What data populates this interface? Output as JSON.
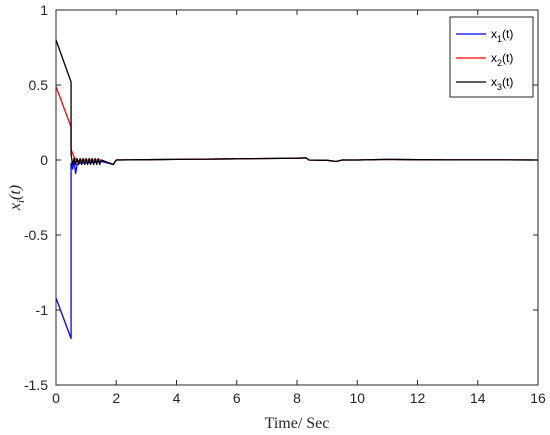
{
  "chart_data": {
    "type": "line",
    "xlabel": "Time/ Sec",
    "ylabel": "x_i(t)",
    "ylabel_base": "x",
    "ylabel_sub": "i",
    "ylabel_rest": "(t)",
    "xlim": [
      0,
      16
    ],
    "ylim": [
      -1.5,
      1
    ],
    "xticks": [
      0,
      2,
      4,
      6,
      8,
      10,
      12,
      14,
      16
    ],
    "yticks": [
      -1.5,
      -1,
      -0.5,
      0,
      0.5,
      1
    ],
    "ytick_labels": [
      "-1.5",
      "-1",
      "-0.5",
      "0",
      "0.5",
      "1"
    ],
    "grid": false,
    "legend_position": "top-right",
    "series": [
      {
        "name": "x_1(t)",
        "legend_base": "x",
        "legend_sub": "1",
        "legend_rest": "(t)",
        "color": "#0000ff",
        "x": [
          0,
          0.5,
          0.5,
          0.55,
          0.6,
          0.65,
          0.7,
          0.8,
          1.0,
          1.5,
          1.9,
          2.0,
          3.0,
          4.0,
          5.0,
          6.0,
          7.0,
          8.0,
          8.3,
          8.4,
          9.0,
          9.3,
          9.5,
          10.0,
          10.5,
          11.0,
          11.5,
          12.0,
          13.0,
          14.0,
          15.0,
          16.0
        ],
        "y": [
          -0.92,
          -1.19,
          -0.02,
          -0.06,
          -0.01,
          -0.09,
          -0.03,
          -0.02,
          -0.02,
          -0.01,
          -0.03,
          0.0,
          0.002,
          0.004,
          0.006,
          0.008,
          0.01,
          0.012,
          0.014,
          0.0,
          -0.002,
          -0.01,
          0.0,
          0.0,
          0.002,
          0.004,
          0.003,
          0.002,
          0.001,
          0.001,
          0.001,
          0.0
        ]
      },
      {
        "name": "x_2(t)",
        "legend_base": "x",
        "legend_sub": "2",
        "legend_rest": "(t)",
        "color": "#ff0000",
        "x": [
          0,
          0.5,
          0.5,
          0.6,
          0.7,
          0.8,
          1.0,
          1.5,
          1.9,
          2.0,
          3.0,
          4.0,
          5.0,
          6.0,
          7.0,
          8.0,
          8.3,
          8.4,
          9.0,
          9.3,
          9.5,
          10.0,
          10.5,
          11.0,
          11.5,
          12.0,
          13.0,
          14.0,
          15.0,
          16.0
        ],
        "y": [
          0.49,
          0.22,
          0.07,
          0.02,
          -0.01,
          0.0,
          0.0,
          0.0,
          -0.03,
          0.0,
          0.002,
          0.004,
          0.006,
          0.008,
          0.01,
          0.012,
          0.014,
          0.0,
          -0.002,
          -0.01,
          0.0,
          0.0,
          0.002,
          0.004,
          0.003,
          0.002,
          0.001,
          0.001,
          0.001,
          0.0
        ]
      },
      {
        "name": "x_3(t)",
        "legend_base": "x",
        "legend_sub": "3",
        "legend_rest": "(t)",
        "color": "#000000",
        "x": [
          0,
          0.5,
          0.5,
          0.55,
          0.6,
          0.65,
          0.7,
          0.75,
          0.8,
          0.85,
          0.9,
          0.95,
          1.0,
          1.05,
          1.1,
          1.15,
          1.2,
          1.25,
          1.3,
          1.35,
          1.4,
          1.45,
          1.5,
          1.9,
          2.0,
          3.0,
          4.0,
          5.0,
          6.0,
          7.0,
          8.0,
          8.3,
          8.4,
          9.0,
          9.3,
          9.5,
          10.0,
          10.5,
          11.0,
          11.5,
          12.0,
          13.0,
          14.0,
          15.0,
          16.0
        ],
        "y": [
          0.8,
          0.52,
          0.04,
          -0.03,
          0.01,
          -0.03,
          0.01,
          -0.03,
          0.01,
          -0.03,
          0.01,
          -0.03,
          0.01,
          -0.03,
          0.01,
          -0.03,
          0.01,
          -0.03,
          0.01,
          -0.03,
          0.01,
          -0.03,
          0.0,
          -0.03,
          0.0,
          0.002,
          0.004,
          0.006,
          0.008,
          0.01,
          0.012,
          0.014,
          0.0,
          -0.002,
          -0.01,
          0.0,
          0.0,
          0.002,
          0.004,
          0.003,
          0.002,
          0.001,
          0.001,
          0.001,
          0.0
        ]
      }
    ]
  }
}
